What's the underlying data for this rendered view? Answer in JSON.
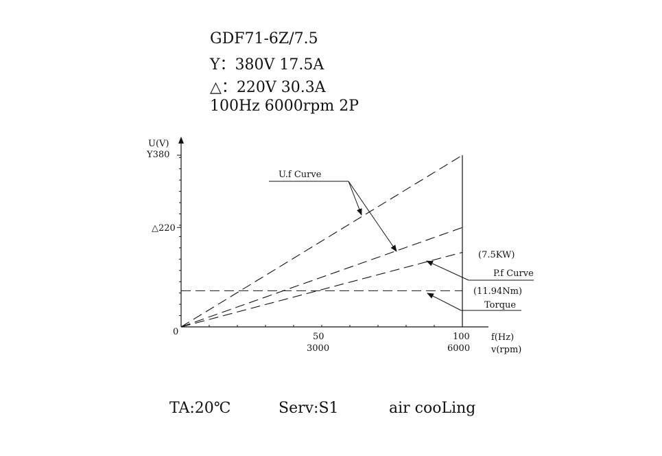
{
  "specs": {
    "model": "GDF71-6Z/7.5",
    "star": "Y：380V 17.5A",
    "delta": "△：220V 30.3A",
    "rating": "100Hz 6000rpm 2P"
  },
  "chart_data": {
    "type": "line",
    "ylabel": "U(V)",
    "xlabel": "f(Hz)",
    "xlabel2": "v(rpm)",
    "xlim": [
      0,
      100
    ],
    "ylim": [
      0,
      380
    ],
    "y_ticks": [
      {
        "value": 380,
        "label": "Y380"
      },
      {
        "value": 220,
        "label": "△220"
      },
      {
        "value": 0,
        "label": "0"
      }
    ],
    "x_ticks": [
      {
        "value": 50,
        "label": "50",
        "label2": "3000"
      },
      {
        "value": 100,
        "label": "100",
        "label2": "6000"
      }
    ],
    "series": [
      {
        "name": "U.f Curve",
        "x": [
          0,
          100
        ],
        "y": [
          0,
          380
        ]
      },
      {
        "name": "U.f Curve",
        "x": [
          0,
          100
        ],
        "y": [
          0,
          220
        ]
      },
      {
        "name": "P.f Curve",
        "x": [
          0,
          100
        ],
        "y": [
          0,
          165
        ]
      },
      {
        "name": "Torque",
        "x": [
          0,
          100
        ],
        "y": [
          80,
          80
        ]
      }
    ],
    "annotations": {
      "uf_curve": "U.f Curve",
      "power_value": "(7.5KW)",
      "pf_curve": "P.f Curve",
      "torque_value": "(11.94Nm)",
      "torque": "Torque"
    },
    "grid": false,
    "line_style": "dashed"
  },
  "footer": {
    "ambient": "TA:20℃",
    "service": "Serv:S1",
    "cooling": "air cooLing"
  }
}
